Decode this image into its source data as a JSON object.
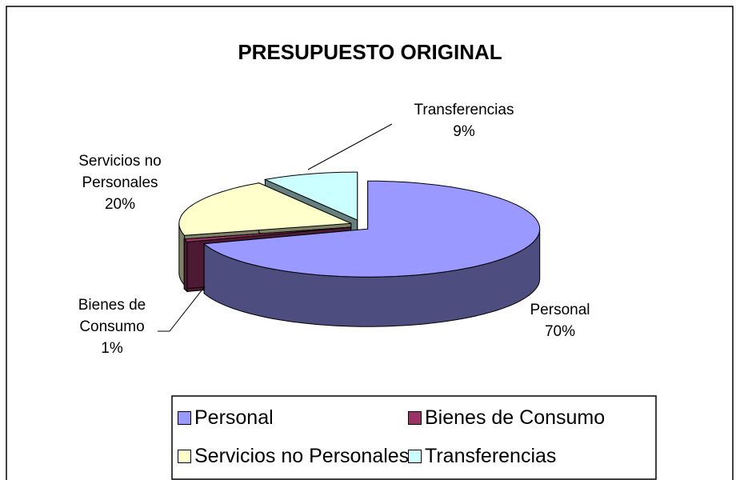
{
  "chart_data": {
    "type": "pie",
    "title": "PRESUPUESTO ORIGINAL",
    "categories": [
      "Personal",
      "Bienes de Consumo",
      "Servicios no Personales",
      "Transferencias"
    ],
    "values": [
      70,
      1,
      20,
      9
    ],
    "value_labels": [
      "70%",
      "1%",
      "20%",
      "9%"
    ],
    "colors": [
      "#9999ff",
      "#993366",
      "#ffffcc",
      "#ccffff"
    ],
    "legend": "bottom"
  }
}
